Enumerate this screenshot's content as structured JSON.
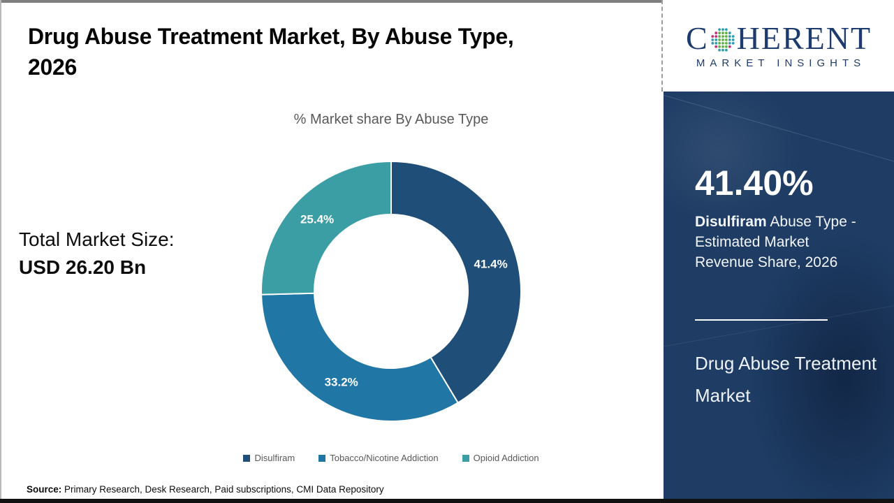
{
  "header": {
    "title_line1": "Drug Abuse Treatment Market, By Abuse Type,",
    "title_line2": "2026"
  },
  "brand": {
    "name_prefix": "C",
    "name_suffix": "HERENT",
    "tagline": "MARKET INSIGHTS",
    "navy": "#1E3B6E",
    "globe_dot_colors": {
      "green": "#5FB246",
      "teal": "#2D9EAE",
      "magenta": "#C22E7C"
    }
  },
  "stats": {
    "total_label": "Total Market Size:",
    "total_value": "USD 26.20 Bn"
  },
  "sidebar": {
    "stat_value": "41.40%",
    "stat_desc_bold": "Disulfiram",
    "stat_desc_rest": " Abuse Type - Estimated Market Revenue Share, 2026",
    "market_name": "Drug Abuse Treatment Market",
    "background": "#1E3C64"
  },
  "source": {
    "label": "Source:",
    "text": " Primary Research, Desk Research, Paid subscriptions, CMI Data Repository"
  },
  "chart_data": {
    "type": "pie",
    "subtype": "donut",
    "title": "% Market share By Abuse Type",
    "categories": [
      "Disulfiram",
      "Tobacco/Nicotine Addiction",
      "Opioid Addiction"
    ],
    "values": [
      41.4,
      33.2,
      25.4
    ],
    "labels": [
      "41.4%",
      "33.2%",
      "25.4%"
    ],
    "colors": [
      "#1F4E79",
      "#2076A5",
      "#3B9EA4"
    ],
    "start_angle_deg": 0,
    "direction": "clockwise",
    "inner_radius_ratio": 0.59,
    "slice_gap_stroke": "#FFFFFF",
    "label_color": "#FFFFFF",
    "legend_position": "bottom"
  }
}
